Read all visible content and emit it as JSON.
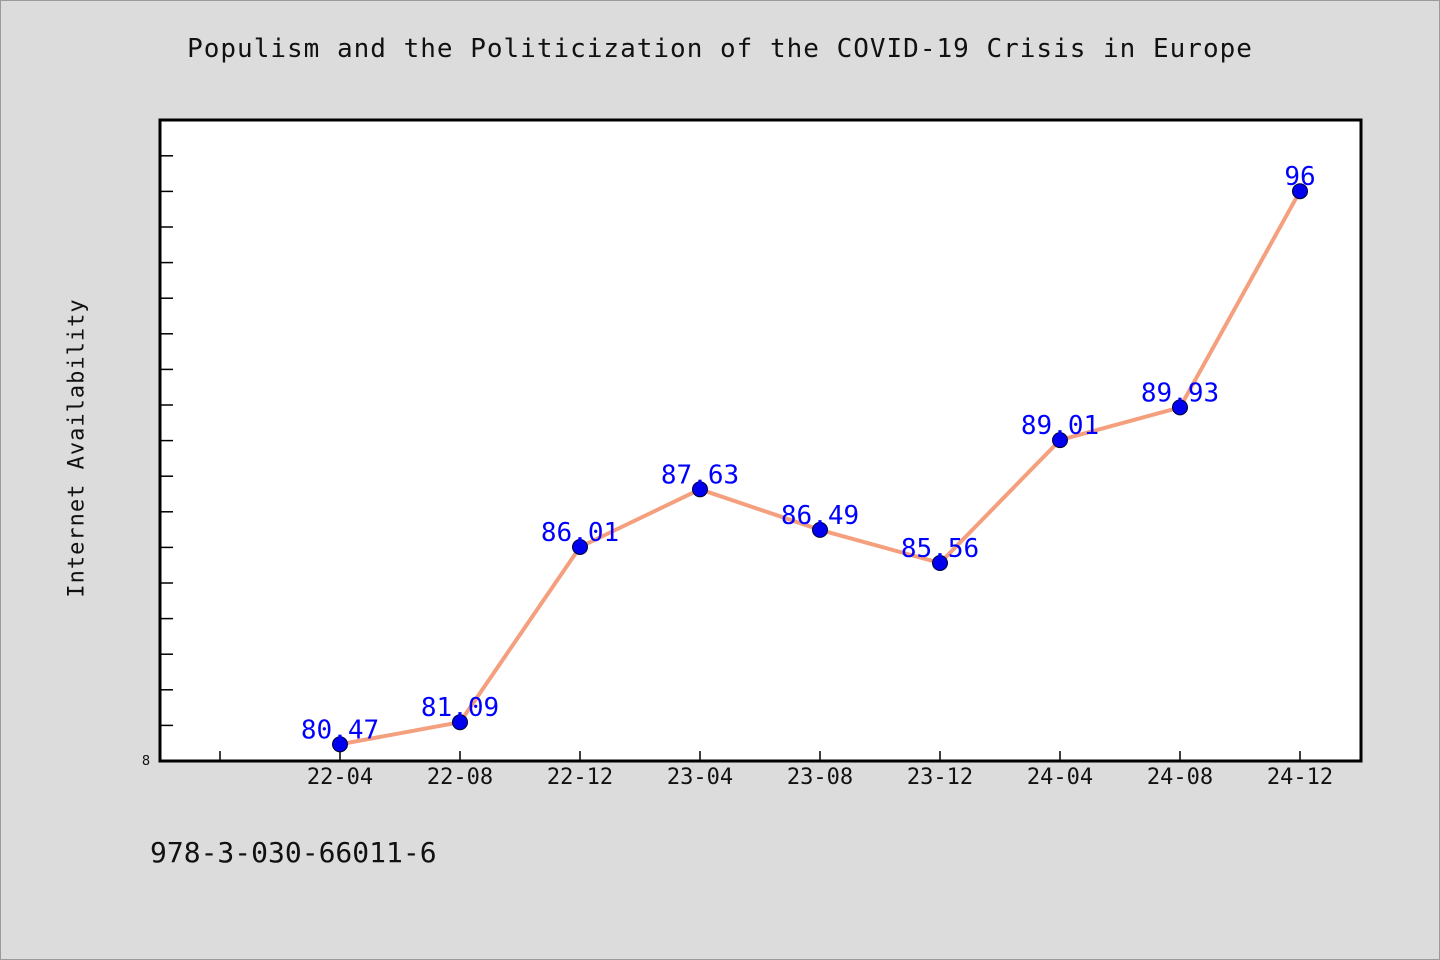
{
  "chart_data": {
    "type": "line",
    "title": "Populism and the Politicization of the COVID-19 Crisis in Europe",
    "xlabel": "",
    "ylabel": "Internet Availability",
    "categories": [
      "22-04",
      "22-08",
      "22-12",
      "23-04",
      "23-08",
      "23-12",
      "24-04",
      "24-08",
      "24-12"
    ],
    "series": [
      {
        "values": [
          80.47,
          81.09,
          86.01,
          87.63,
          86.49,
          85.56,
          89.01,
          89.93,
          96
        ]
      }
    ],
    "data_labels": [
      "80.47",
      "81.09",
      "86.01",
      "87.63",
      "86.49",
      "85.56",
      "89.01",
      "89.93",
      "96"
    ],
    "y_tick_label": "8",
    "ylim": [
      80,
      98
    ],
    "grid": false,
    "line_color": "#f4a07e",
    "marker_color": "#0000ee",
    "label_color": "#0000ff"
  },
  "footer_text": "978-3-030-66011-6"
}
